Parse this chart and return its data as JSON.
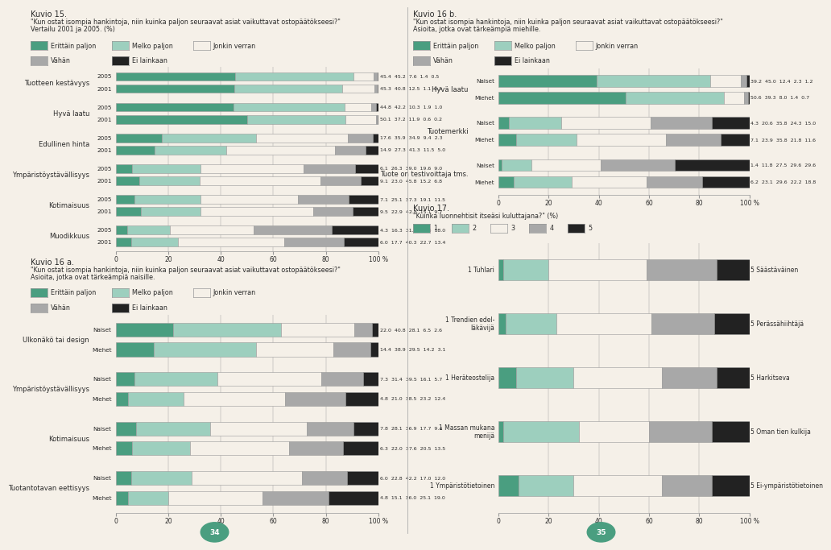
{
  "colors": [
    "#4a9e80",
    "#9dcfbe",
    "#f5f0e8",
    "#a8a8a8",
    "#222222"
  ],
  "bar_edge_color": "#999999",
  "background_color": "#f5f0e8",
  "text_color": "#2a2a2a",
  "kuvio15_title": "Kuvio 15.",
  "kuvio15_subtitle1": "\"Kun ostat isompia hankintoja, niin kuinka paljon seuraavat asiat vaikuttavat ostopäätökseesi?\"",
  "kuvio15_subtitle2": "Vertailu 2001 ja 2005. (%)",
  "kuvio15_categories": [
    "Tuotteen kestävyys",
    "Hyvä laatu",
    "Edullinen hinta",
    "Ympäristöystävällisyys",
    "Kotimaisuus",
    "Muodikkuus"
  ],
  "kuvio15_data": {
    "Tuotteen kestävyys": {
      "2005": [
        45.4,
        45.2,
        7.6,
        1.4,
        0.5
      ],
      "2001": [
        45.3,
        40.8,
        12.5,
        1.1,
        0.3
      ]
    },
    "Hyvä laatu": {
      "2005": [
        44.8,
        42.2,
        10.3,
        1.9,
        1.0
      ],
      "2001": [
        50.1,
        37.2,
        11.9,
        0.6,
        0.2
      ]
    },
    "Edullinen hinta": {
      "2005": [
        17.6,
        35.9,
        34.9,
        9.4,
        2.3
      ],
      "2001": [
        14.9,
        27.3,
        41.3,
        11.5,
        5.0
      ]
    },
    "Ympäristöystävällisyys": {
      "2005": [
        6.1,
        26.3,
        39.0,
        19.6,
        9.0
      ],
      "2001": [
        9.1,
        23.0,
        45.8,
        15.2,
        6.8
      ]
    },
    "Kotimaisuus": {
      "2005": [
        7.1,
        25.1,
        37.3,
        19.1,
        11.5
      ],
      "2001": [
        9.5,
        22.9,
        42.8,
        15.1,
        9.7
      ]
    },
    "Muodikkuus": {
      "2005": [
        4.3,
        16.3,
        31.9,
        29.6,
        18.0
      ],
      "2001": [
        6.0,
        17.7,
        40.3,
        22.7,
        13.4
      ]
    }
  },
  "kuvio16a_title": "Kuvio 16 a.",
  "kuvio16a_subtitle1": "\"Kun ostat isompia hankintoja, niin kuinka paljon seuraavat asiat vaikuttavat ostopäätökseesi?\"",
  "kuvio16a_subtitle2": "Asioita, jotka ovat tärkeämpiä naisille.",
  "kuvio16a_categories": [
    "Ulkonäkö tai design",
    "Ympäristöystävällisyys",
    "Kotimaisuus",
    "Tuotantotavan eettisyys"
  ],
  "kuvio16a_data": {
    "Ulkonäkö tai design": {
      "Naiset": [
        22.0,
        40.8,
        28.1,
        6.5,
        2.6
      ],
      "Miehet": [
        14.4,
        38.9,
        29.5,
        14.2,
        3.1
      ]
    },
    "Ympäristöystävällisyys": {
      "Naiset": [
        7.3,
        31.4,
        39.5,
        16.1,
        5.7
      ],
      "Miehet": [
        4.8,
        21.0,
        38.5,
        23.2,
        12.4
      ]
    },
    "Kotimaisuus": {
      "Naiset": [
        7.8,
        28.1,
        36.9,
        17.7,
        9.4
      ],
      "Miehet": [
        6.3,
        22.0,
        37.6,
        20.5,
        13.5
      ]
    },
    "Tuotantotavan eettisyys": {
      "Naiset": [
        6.0,
        22.8,
        42.2,
        17.0,
        12.0
      ],
      "Miehet": [
        4.8,
        15.1,
        36.0,
        25.1,
        19.0
      ]
    }
  },
  "kuvio16b_title": "Kuvio 16 b.",
  "kuvio16b_subtitle1": "\"Kun ostat isompia hankintoja, niin kuinka paljon seuraavat asiat vaikuttavat ostopäätökseesi?\"",
  "kuvio16b_subtitle2": "Asioita, jotka ovat tärkeämpiä miehille.",
  "kuvio16b_categories": [
    "Hyvä laatu",
    "Tuotemerkki",
    "Tuote on testivoittaja tms."
  ],
  "kuvio16b_data": {
    "Hyvä laatu": {
      "Naiset": [
        39.2,
        45.0,
        12.4,
        2.3,
        1.2
      ],
      "Miehet": [
        50.6,
        39.3,
        8.0,
        1.4,
        0.7
      ]
    },
    "Tuotemerkki": {
      "Naiset": [
        4.3,
        20.6,
        35.8,
        24.3,
        15.0
      ],
      "Miehet": [
        7.1,
        23.9,
        35.8,
        21.8,
        11.6
      ]
    },
    "Tuote on testivoittaja tms.": {
      "Naiset": [
        1.4,
        11.8,
        27.5,
        29.6,
        29.6
      ],
      "Miehet": [
        6.2,
        23.1,
        29.6,
        22.2,
        18.8
      ]
    }
  },
  "kuvio17_title": "Kuvio 17.",
  "kuvio17_subtitle": "\"Kuinka luonnehtisit itseäsi kuluttajana?\" (%)",
  "kuvio17_categories": [
    "1 Tuhlari",
    "1 Trendien edel-\nläkävijä",
    "1 Heräteostelija",
    "1 Massan mukana\nmenijä",
    "1 Ympäristötietoinen"
  ],
  "kuvio17_right_labels": [
    "5 Säästäväinen",
    "5 Perässähiihtäjä",
    "5 Harkitseva",
    "5 Oman tien kulkija",
    "5 Ei-ympäristötietoinen"
  ],
  "kuvio17_data": [
    [
      2.0,
      18.0,
      39.0,
      28.0,
      13.0
    ],
    [
      3.0,
      20.0,
      38.0,
      25.0,
      14.0
    ],
    [
      7.0,
      23.0,
      35.0,
      22.0,
      13.0
    ],
    [
      2.0,
      30.0,
      28.0,
      25.0,
      15.0
    ],
    [
      8.0,
      22.0,
      35.0,
      20.0,
      15.0
    ]
  ],
  "legend_labels": [
    "Erittäin paljon",
    "Melko paljon",
    "Jonkin verran",
    "Vähän",
    "Ei lainkaan"
  ],
  "kuvio17_legend_labels": [
    "1",
    "2",
    "3",
    "4",
    "5"
  ],
  "page_left": "34",
  "page_right": "35"
}
